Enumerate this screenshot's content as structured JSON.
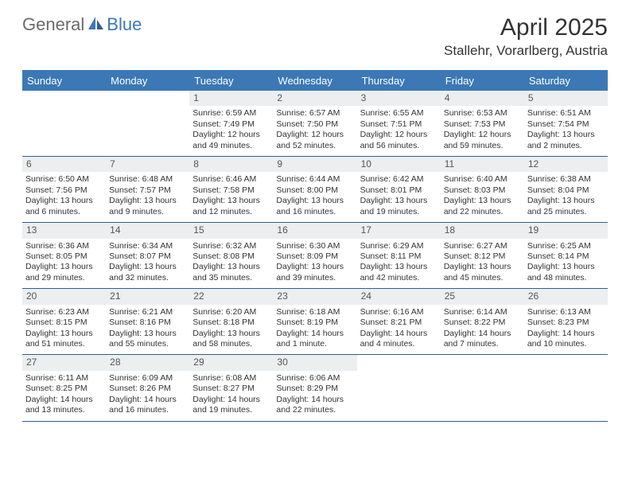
{
  "brand": {
    "part1": "General",
    "part2": "Blue"
  },
  "title": "April 2025",
  "location": "Stallehr, Vorarlberg, Austria",
  "colors": {
    "header_bg": "#3b78b5",
    "header_text": "#ffffff",
    "daynum_bg": "#eceeef",
    "week_border": "#2f5f8f",
    "body_text": "#333333",
    "logo_gray": "#6b6b6b",
    "logo_blue": "#3b78b5",
    "page_bg": "#ffffff"
  },
  "day_headers": [
    "Sunday",
    "Monday",
    "Tuesday",
    "Wednesday",
    "Thursday",
    "Friday",
    "Saturday"
  ],
  "weeks": [
    [
      {
        "n": "",
        "sunrise": "",
        "sunset": "",
        "daylight": ""
      },
      {
        "n": "",
        "sunrise": "",
        "sunset": "",
        "daylight": ""
      },
      {
        "n": "1",
        "sunrise": "Sunrise: 6:59 AM",
        "sunset": "Sunset: 7:49 PM",
        "daylight": "Daylight: 12 hours and 49 minutes."
      },
      {
        "n": "2",
        "sunrise": "Sunrise: 6:57 AM",
        "sunset": "Sunset: 7:50 PM",
        "daylight": "Daylight: 12 hours and 52 minutes."
      },
      {
        "n": "3",
        "sunrise": "Sunrise: 6:55 AM",
        "sunset": "Sunset: 7:51 PM",
        "daylight": "Daylight: 12 hours and 56 minutes."
      },
      {
        "n": "4",
        "sunrise": "Sunrise: 6:53 AM",
        "sunset": "Sunset: 7:53 PM",
        "daylight": "Daylight: 12 hours and 59 minutes."
      },
      {
        "n": "5",
        "sunrise": "Sunrise: 6:51 AM",
        "sunset": "Sunset: 7:54 PM",
        "daylight": "Daylight: 13 hours and 2 minutes."
      }
    ],
    [
      {
        "n": "6",
        "sunrise": "Sunrise: 6:50 AM",
        "sunset": "Sunset: 7:56 PM",
        "daylight": "Daylight: 13 hours and 6 minutes."
      },
      {
        "n": "7",
        "sunrise": "Sunrise: 6:48 AM",
        "sunset": "Sunset: 7:57 PM",
        "daylight": "Daylight: 13 hours and 9 minutes."
      },
      {
        "n": "8",
        "sunrise": "Sunrise: 6:46 AM",
        "sunset": "Sunset: 7:58 PM",
        "daylight": "Daylight: 13 hours and 12 minutes."
      },
      {
        "n": "9",
        "sunrise": "Sunrise: 6:44 AM",
        "sunset": "Sunset: 8:00 PM",
        "daylight": "Daylight: 13 hours and 16 minutes."
      },
      {
        "n": "10",
        "sunrise": "Sunrise: 6:42 AM",
        "sunset": "Sunset: 8:01 PM",
        "daylight": "Daylight: 13 hours and 19 minutes."
      },
      {
        "n": "11",
        "sunrise": "Sunrise: 6:40 AM",
        "sunset": "Sunset: 8:03 PM",
        "daylight": "Daylight: 13 hours and 22 minutes."
      },
      {
        "n": "12",
        "sunrise": "Sunrise: 6:38 AM",
        "sunset": "Sunset: 8:04 PM",
        "daylight": "Daylight: 13 hours and 25 minutes."
      }
    ],
    [
      {
        "n": "13",
        "sunrise": "Sunrise: 6:36 AM",
        "sunset": "Sunset: 8:05 PM",
        "daylight": "Daylight: 13 hours and 29 minutes."
      },
      {
        "n": "14",
        "sunrise": "Sunrise: 6:34 AM",
        "sunset": "Sunset: 8:07 PM",
        "daylight": "Daylight: 13 hours and 32 minutes."
      },
      {
        "n": "15",
        "sunrise": "Sunrise: 6:32 AM",
        "sunset": "Sunset: 8:08 PM",
        "daylight": "Daylight: 13 hours and 35 minutes."
      },
      {
        "n": "16",
        "sunrise": "Sunrise: 6:30 AM",
        "sunset": "Sunset: 8:09 PM",
        "daylight": "Daylight: 13 hours and 39 minutes."
      },
      {
        "n": "17",
        "sunrise": "Sunrise: 6:29 AM",
        "sunset": "Sunset: 8:11 PM",
        "daylight": "Daylight: 13 hours and 42 minutes."
      },
      {
        "n": "18",
        "sunrise": "Sunrise: 6:27 AM",
        "sunset": "Sunset: 8:12 PM",
        "daylight": "Daylight: 13 hours and 45 minutes."
      },
      {
        "n": "19",
        "sunrise": "Sunrise: 6:25 AM",
        "sunset": "Sunset: 8:14 PM",
        "daylight": "Daylight: 13 hours and 48 minutes."
      }
    ],
    [
      {
        "n": "20",
        "sunrise": "Sunrise: 6:23 AM",
        "sunset": "Sunset: 8:15 PM",
        "daylight": "Daylight: 13 hours and 51 minutes."
      },
      {
        "n": "21",
        "sunrise": "Sunrise: 6:21 AM",
        "sunset": "Sunset: 8:16 PM",
        "daylight": "Daylight: 13 hours and 55 minutes."
      },
      {
        "n": "22",
        "sunrise": "Sunrise: 6:20 AM",
        "sunset": "Sunset: 8:18 PM",
        "daylight": "Daylight: 13 hours and 58 minutes."
      },
      {
        "n": "23",
        "sunrise": "Sunrise: 6:18 AM",
        "sunset": "Sunset: 8:19 PM",
        "daylight": "Daylight: 14 hours and 1 minute."
      },
      {
        "n": "24",
        "sunrise": "Sunrise: 6:16 AM",
        "sunset": "Sunset: 8:21 PM",
        "daylight": "Daylight: 14 hours and 4 minutes."
      },
      {
        "n": "25",
        "sunrise": "Sunrise: 6:14 AM",
        "sunset": "Sunset: 8:22 PM",
        "daylight": "Daylight: 14 hours and 7 minutes."
      },
      {
        "n": "26",
        "sunrise": "Sunrise: 6:13 AM",
        "sunset": "Sunset: 8:23 PM",
        "daylight": "Daylight: 14 hours and 10 minutes."
      }
    ],
    [
      {
        "n": "27",
        "sunrise": "Sunrise: 6:11 AM",
        "sunset": "Sunset: 8:25 PM",
        "daylight": "Daylight: 14 hours and 13 minutes."
      },
      {
        "n": "28",
        "sunrise": "Sunrise: 6:09 AM",
        "sunset": "Sunset: 8:26 PM",
        "daylight": "Daylight: 14 hours and 16 minutes."
      },
      {
        "n": "29",
        "sunrise": "Sunrise: 6:08 AM",
        "sunset": "Sunset: 8:27 PM",
        "daylight": "Daylight: 14 hours and 19 minutes."
      },
      {
        "n": "30",
        "sunrise": "Sunrise: 6:06 AM",
        "sunset": "Sunset: 8:29 PM",
        "daylight": "Daylight: 14 hours and 22 minutes."
      },
      {
        "n": "",
        "sunrise": "",
        "sunset": "",
        "daylight": ""
      },
      {
        "n": "",
        "sunrise": "",
        "sunset": "",
        "daylight": ""
      },
      {
        "n": "",
        "sunrise": "",
        "sunset": "",
        "daylight": ""
      }
    ]
  ]
}
